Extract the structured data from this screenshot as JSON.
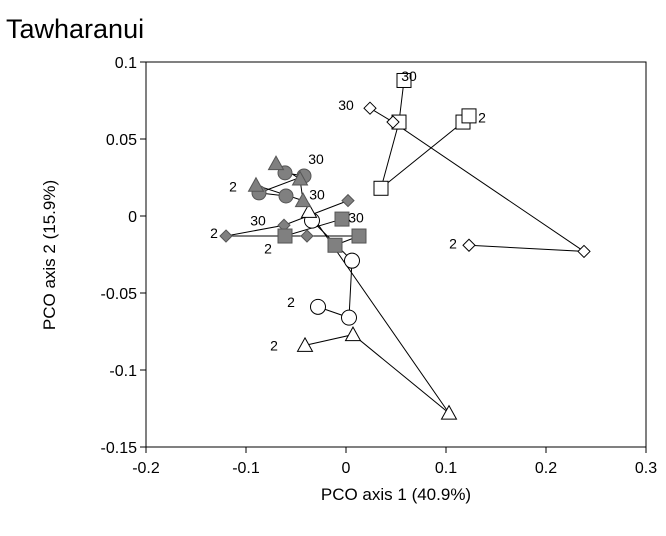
{
  "chart_data": {
    "type": "scatter",
    "title": "Tawharanui",
    "xlabel": "PCO axis 1 (40.9%)",
    "ylabel": "PCO axis 2 (15.9%)",
    "xlim": [
      -0.2,
      0.3
    ],
    "ylim": [
      -0.15,
      0.1
    ],
    "x_ticks": [
      -0.2,
      -0.1,
      0,
      0.1,
      0.2,
      0.3
    ],
    "x_tick_labels": [
      "-0.2",
      "-0.1",
      "0",
      "0.1",
      "0.2",
      "0.3"
    ],
    "y_ticks": [
      -0.15,
      -0.1,
      -0.05,
      0,
      0.05,
      0.1
    ],
    "y_tick_labels": [
      "-0.15",
      "-0.1",
      "-0.05",
      "0",
      "0.05",
      "0.1"
    ],
    "grid": false,
    "legend": "none",
    "series": [
      {
        "marker": "square",
        "fill": "#ffffff",
        "size": 14,
        "points": [
          [
            0.058,
            0.088
          ],
          [
            0.053,
            0.061
          ],
          [
            0.035,
            0.018
          ],
          [
            0.117,
            0.061
          ],
          [
            0.123,
            0.065
          ]
        ],
        "path": [
          0,
          1,
          2,
          3,
          4
        ]
      },
      {
        "marker": "diamond",
        "fill": "#ffffff",
        "size": 12,
        "points": [
          [
            0.024,
            0.07
          ],
          [
            0.047,
            0.061
          ],
          [
            0.238,
            -0.023
          ],
          [
            0.123,
            -0.019
          ]
        ],
        "path": [
          0,
          1,
          2,
          3
        ]
      },
      {
        "marker": "circle",
        "fill": "#ffffff",
        "size": 15,
        "points": [
          [
            -0.034,
            -0.003
          ],
          [
            0.006,
            -0.029
          ],
          [
            0.003,
            -0.066
          ],
          [
            -0.028,
            -0.059
          ]
        ],
        "path": [
          0,
          1,
          2,
          3
        ]
      },
      {
        "marker": "triangle",
        "fill": "#ffffff",
        "size": 15,
        "points": [
          [
            -0.037,
            0.003
          ],
          [
            0.103,
            -0.128
          ],
          [
            0.007,
            -0.077
          ],
          [
            -0.041,
            -0.084
          ]
        ],
        "path": [
          0,
          1,
          2,
          3
        ]
      },
      {
        "marker": "diamond",
        "fill": "#808080",
        "size": 12,
        "points": [
          [
            0.002,
            0.01
          ],
          [
            -0.062,
            -0.006
          ],
          [
            -0.12,
            -0.013
          ],
          [
            -0.039,
            -0.013
          ]
        ],
        "path": [
          0,
          1,
          2,
          3
        ]
      },
      {
        "marker": "square",
        "fill": "#808080",
        "size": 14,
        "points": [
          [
            -0.004,
            -0.002
          ],
          [
            -0.061,
            -0.013
          ],
          [
            0.013,
            -0.013
          ],
          [
            -0.011,
            -0.019
          ]
        ],
        "path": [
          0,
          1,
          2,
          3
        ]
      },
      {
        "marker": "circle",
        "fill": "#808080",
        "size": 14,
        "points": [
          [
            -0.061,
            0.028
          ],
          [
            -0.042,
            0.026
          ],
          [
            -0.087,
            0.015
          ],
          [
            -0.06,
            0.013
          ]
        ],
        "path": [
          0,
          1,
          2,
          3
        ]
      },
      {
        "marker": "triangle",
        "fill": "#808080",
        "size": 15,
        "points": [
          [
            -0.07,
            0.034
          ],
          [
            -0.046,
            0.024
          ],
          [
            -0.043,
            0.01
          ],
          [
            -0.09,
            0.02
          ]
        ],
        "path": [
          0,
          1,
          2,
          3
        ]
      }
    ],
    "annotations": [
      {
        "text": "30",
        "x": 0.063,
        "y": 0.091
      },
      {
        "text": "2",
        "x": 0.136,
        "y": 0.064
      },
      {
        "text": "30",
        "x": 0.0,
        "y": 0.072
      },
      {
        "text": "2",
        "x": 0.107,
        "y": -0.018
      },
      {
        "text": "30",
        "x": -0.03,
        "y": 0.037
      },
      {
        "text": "30",
        "x": -0.029,
        "y": 0.014
      },
      {
        "text": "30",
        "x": 0.01,
        "y": -0.001
      },
      {
        "text": "30",
        "x": -0.088,
        "y": -0.003
      },
      {
        "text": "2",
        "x": -0.113,
        "y": 0.019
      },
      {
        "text": "2",
        "x": -0.132,
        "y": -0.011
      },
      {
        "text": "2",
        "x": -0.078,
        "y": -0.021
      },
      {
        "text": "2",
        "x": -0.055,
        "y": -0.056
      },
      {
        "text": "2",
        "x": -0.072,
        "y": -0.084
      }
    ]
  }
}
